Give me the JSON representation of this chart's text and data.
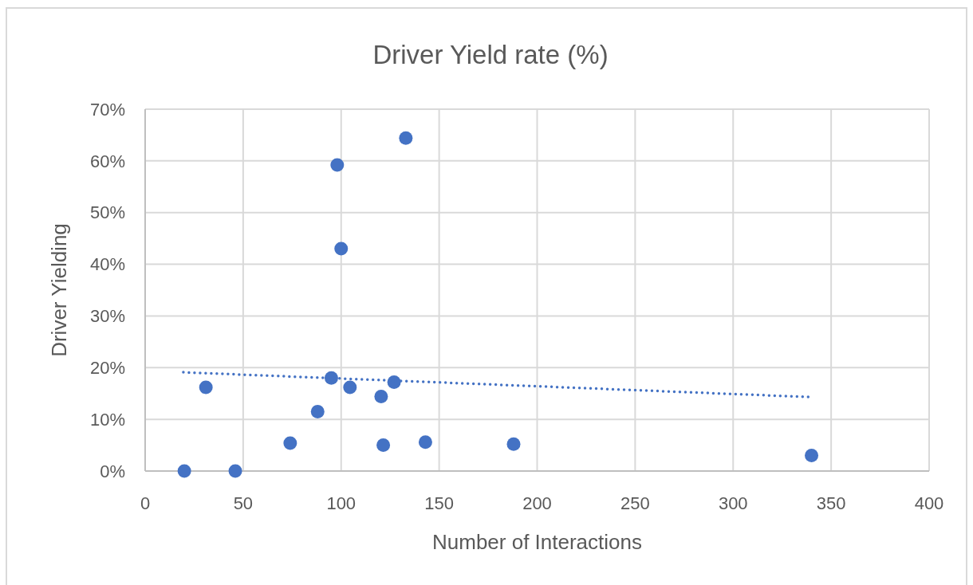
{
  "chart_data": {
    "type": "scatter",
    "title": "Driver Yield rate (%)",
    "xlabel": "Number of Interactions",
    "ylabel": "Driver Yielding",
    "series": [
      {
        "color": "#4472c4",
        "marker": "circle",
        "x": [
          20,
          46,
          31,
          74,
          88,
          95,
          98,
          100,
          104.5,
          120.4,
          121.5,
          127,
          133,
          143,
          188,
          340
        ],
        "values": [
          0,
          0,
          16.2,
          5.4,
          11.5,
          18.0,
          59.2,
          43.0,
          16.2,
          14.4,
          5.0,
          17.2,
          64.4,
          5.6,
          5.2,
          3.0
        ]
      },
      {
        "type": "line",
        "color": "#4472c4",
        "line_style": "dotted",
        "marker": "none",
        "x": [
          19.5,
          340
        ],
        "values": [
          19.1,
          14.3
        ]
      }
    ],
    "xlim": [
      0,
      400
    ],
    "xticks": [
      0,
      50,
      100,
      150,
      200,
      250,
      300,
      350,
      400
    ],
    "ylim": [
      0,
      70
    ],
    "yticks": [
      {
        "value": 0,
        "label": "0%"
      },
      {
        "value": 10,
        "label": "10%"
      },
      {
        "value": 20,
        "label": "20%"
      },
      {
        "value": 30,
        "label": "30%"
      },
      {
        "value": 40,
        "label": "40%"
      },
      {
        "value": 50,
        "label": "50%"
      },
      {
        "value": 60,
        "label": "60%"
      },
      {
        "value": 70,
        "label": "70%"
      }
    ],
    "grid": true
  }
}
